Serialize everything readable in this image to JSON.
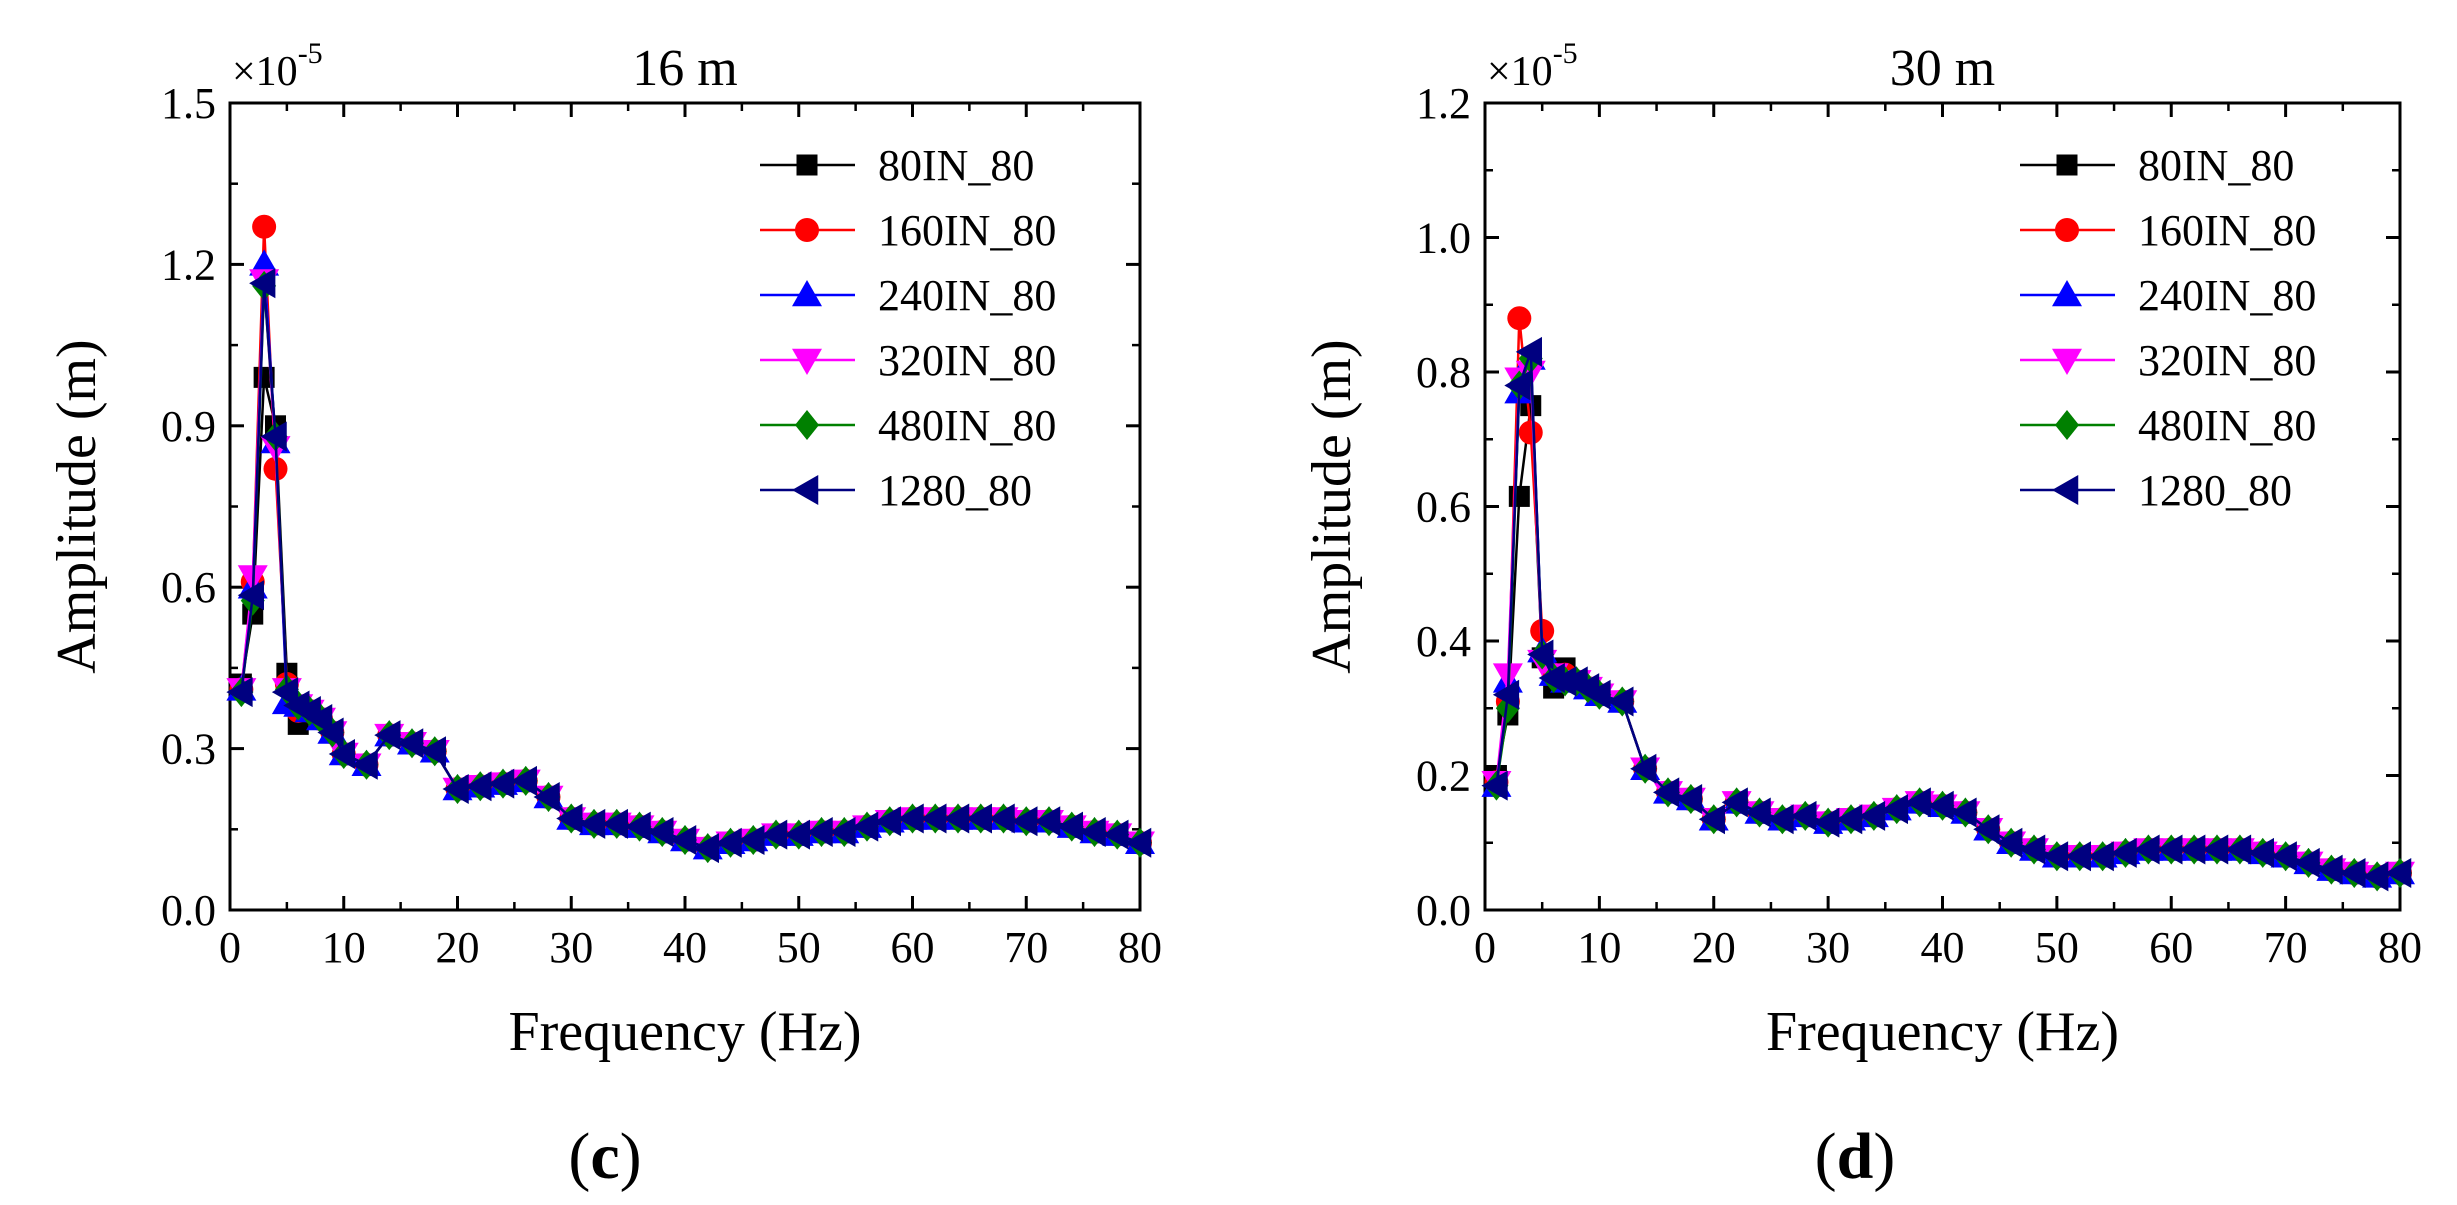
{
  "chart_data": [
    {
      "panel_label": "c",
      "type": "line",
      "title": "16 m",
      "xlabel": "Frequency (Hz)",
      "ylabel": "Amplitude (m)",
      "y_multiplier_base": "×10",
      "y_multiplier_exp": "-5",
      "xlim": [
        0,
        80
      ],
      "ylim": [
        0,
        1.5
      ],
      "x_ticks": [
        0,
        10,
        20,
        30,
        40,
        50,
        60,
        70,
        80
      ],
      "y_ticks": [
        0.0,
        0.3,
        0.6,
        0.9,
        1.2,
        1.5
      ],
      "y_tick_labels": [
        "0.0",
        "0.3",
        "0.6",
        "0.9",
        "1.2",
        "1.5"
      ],
      "legend_position": "top-right",
      "x": [
        1,
        2,
        3,
        4,
        5,
        6,
        7,
        8,
        9,
        10,
        12,
        14,
        16,
        18,
        20,
        22,
        24,
        26,
        28,
        30,
        32,
        34,
        36,
        38,
        40,
        42,
        44,
        46,
        48,
        50,
        52,
        54,
        56,
        58,
        60,
        62,
        64,
        66,
        68,
        70,
        72,
        74,
        76,
        78,
        80
      ],
      "common_tail": [
        0.37,
        0.355,
        0.33,
        0.29,
        0.27,
        0.325,
        0.31,
        0.295,
        0.225,
        0.23,
        0.235,
        0.24,
        0.21,
        0.17,
        0.16,
        0.16,
        0.155,
        0.145,
        0.13,
        0.115,
        0.125,
        0.13,
        0.14,
        0.14,
        0.145,
        0.145,
        0.155,
        0.165,
        0.17,
        0.17,
        0.17,
        0.17,
        0.17,
        0.165,
        0.165,
        0.155,
        0.145,
        0.14,
        0.125,
        0.115
      ],
      "series": [
        {
          "name": "80IN_80",
          "color": "#000000",
          "marker": "square",
          "head": [
            0.42,
            0.55,
            0.99,
            0.9,
            0.44,
            0.345
          ]
        },
        {
          "name": "160IN_80",
          "color": "#ff0000",
          "marker": "circle",
          "head": [
            0.41,
            0.61,
            1.27,
            0.82,
            0.42,
            0.37
          ]
        },
        {
          "name": "240IN_80",
          "color": "#0000ff",
          "marker": "triangle-up",
          "head": [
            0.41,
            0.6,
            1.2,
            0.87,
            0.385,
            0.38
          ]
        },
        {
          "name": "320IN_80",
          "color": "#ff00ff",
          "marker": "triangle-down",
          "head": [
            0.41,
            0.62,
            1.17,
            0.86,
            0.41,
            0.38
          ]
        },
        {
          "name": "480IN_80",
          "color": "#008000",
          "marker": "diamond",
          "head": [
            0.405,
            0.575,
            1.16,
            0.88,
            0.41,
            0.38
          ]
        },
        {
          "name": "1280_80",
          "color": "#000080",
          "marker": "triangle-left",
          "head": [
            0.405,
            0.585,
            1.165,
            0.88,
            0.405,
            0.38
          ]
        }
      ]
    },
    {
      "panel_label": "d",
      "type": "line",
      "title": "30 m",
      "xlabel": "Frequency (Hz)",
      "ylabel": "Amplitude (m)",
      "y_multiplier_base": "×10",
      "y_multiplier_exp": "-5",
      "xlim": [
        0,
        80
      ],
      "ylim": [
        0,
        1.2
      ],
      "x_ticks": [
        0,
        10,
        20,
        30,
        40,
        50,
        60,
        70,
        80
      ],
      "y_ticks": [
        0.0,
        0.2,
        0.4,
        0.6,
        0.8,
        1.0,
        1.2
      ],
      "y_tick_labels": [
        "0.0",
        "0.2",
        "0.4",
        "0.6",
        "0.8",
        "1.0",
        "1.2"
      ],
      "legend_position": "top-right",
      "x": [
        1,
        2,
        3,
        4,
        5,
        6,
        7,
        8,
        9,
        10,
        12,
        14,
        16,
        18,
        20,
        22,
        24,
        26,
        28,
        30,
        32,
        34,
        36,
        38,
        40,
        42,
        44,
        46,
        48,
        50,
        52,
        54,
        56,
        58,
        60,
        62,
        64,
        66,
        68,
        70,
        72,
        74,
        76,
        78,
        80
      ],
      "common_tail": [
        0.34,
        0.33,
        0.32,
        0.31,
        0.21,
        0.175,
        0.165,
        0.135,
        0.16,
        0.145,
        0.135,
        0.14,
        0.13,
        0.135,
        0.14,
        0.15,
        0.16,
        0.155,
        0.145,
        0.12,
        0.1,
        0.09,
        0.08,
        0.08,
        0.08,
        0.085,
        0.09,
        0.09,
        0.09,
        0.09,
        0.09,
        0.085,
        0.08,
        0.07,
        0.06,
        0.055,
        0.05,
        0.055,
        0.055
      ],
      "series": [
        {
          "name": "80IN_80",
          "color": "#000000",
          "marker": "square",
          "head": [
            0.2,
            0.29,
            0.615,
            0.75,
            0.375,
            0.33,
            0.36
          ]
        },
        {
          "name": "160IN_80",
          "color": "#ff0000",
          "marker": "circle",
          "head": [
            0.19,
            0.31,
            0.88,
            0.71,
            0.415,
            0.35,
            0.35
          ]
        },
        {
          "name": "240IN_80",
          "color": "#0000ff",
          "marker": "triangle-up",
          "head": [
            0.185,
            0.34,
            0.77,
            0.82,
            0.385,
            0.35,
            0.34
          ]
        },
        {
          "name": "320IN_80",
          "color": "#ff00ff",
          "marker": "triangle-down",
          "head": [
            0.19,
            0.35,
            0.79,
            0.8,
            0.37,
            0.35,
            0.34
          ]
        },
        {
          "name": "480IN_80",
          "color": "#008000",
          "marker": "diamond",
          "head": [
            0.185,
            0.3,
            0.78,
            0.82,
            0.38,
            0.345,
            0.34
          ]
        },
        {
          "name": "1280_80",
          "color": "#000080",
          "marker": "triangle-left",
          "head": [
            0.185,
            0.32,
            0.78,
            0.83,
            0.38,
            0.345,
            0.34
          ]
        }
      ]
    }
  ]
}
